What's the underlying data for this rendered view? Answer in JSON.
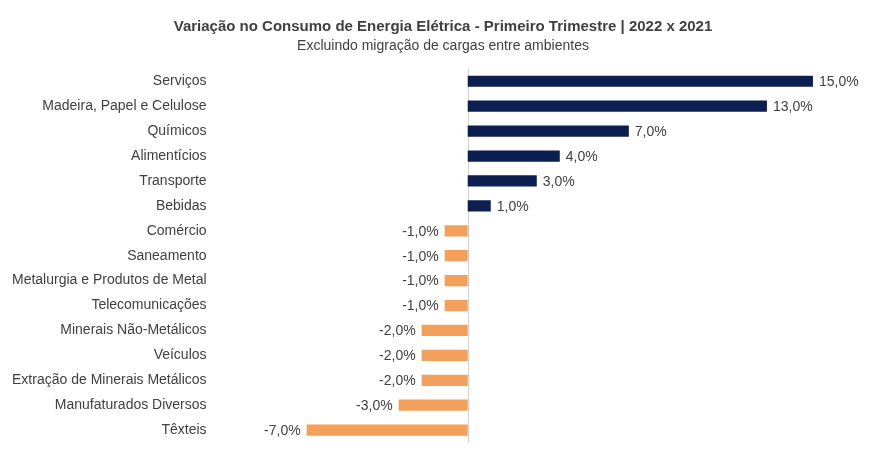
{
  "chart_data": {
    "type": "bar",
    "orientation": "horizontal",
    "title": "Variação no Consumo de Energia Elétrica - Primeiro Trimestre | 2022 x 2021",
    "subtitle": "Excluindo migração de cargas entre ambientes",
    "categories": [
      "Serviços",
      "Madeira, Papel e Celulose",
      "Químicos",
      "Alimentícios",
      "Transporte",
      "Bebidas",
      "Comércio",
      "Saneamento",
      "Metalurgia e Produtos de Metal",
      "Telecomunicações",
      "Minerais Não-Metálicos",
      "Veículos",
      "Extração de Minerais Metálicos",
      "Manufaturados Diversos",
      "Têxteis"
    ],
    "values": [
      15,
      13,
      7,
      4,
      3,
      1,
      -1,
      -1,
      -1,
      -1,
      -2,
      -2,
      -2,
      -3,
      -7
    ],
    "value_labels": [
      "15,0%",
      "13,0%",
      "7,0%",
      "4,0%",
      "3,0%",
      "1,0%",
      "-1,0%",
      "-1,0%",
      "-1,0%",
      "-1,0%",
      "-2,0%",
      "-2,0%",
      "-2,0%",
      "-3,0%",
      "-7,0%"
    ],
    "colors": [
      "#0d1e50",
      "#0d1e50",
      "#0d1e50",
      "#0d1e50",
      "#0d1e50",
      "#0d1e50",
      "#f2a05c",
      "#f2a05c",
      "#f2a05c",
      "#f2a05c",
      "#f2a05c",
      "#f2a05c",
      "#f2a05c",
      "#f2a05c",
      "#f2a05c"
    ],
    "xlim": [
      -11,
      18
    ],
    "grid": false,
    "data_labels": true,
    "tick_labels": "y"
  }
}
